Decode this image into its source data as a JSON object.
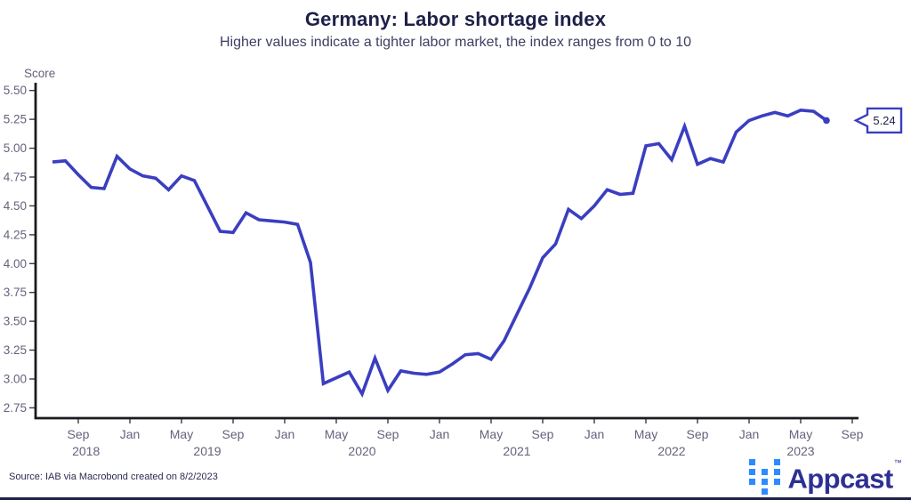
{
  "header": {
    "title": "Germany: Labor shortage index",
    "subtitle": "Higher values indicate a tighter labor market, the index ranges from 0 to 10"
  },
  "chart_data": {
    "type": "line",
    "title": "Germany: Labor shortage index",
    "subtitle": "Higher values indicate a tighter labor market, the index ranges from 0 to 10",
    "ylabel": "Score",
    "xlabel": "",
    "ylim": [
      2.75,
      5.5
    ],
    "ytick_step": 0.25,
    "ytick_labels": [
      "5.50",
      "5.25",
      "5.00",
      "4.75",
      "4.50",
      "4.25",
      "4.00",
      "3.75",
      "3.50",
      "3.25",
      "3.00",
      "2.75"
    ],
    "grid": false,
    "legend_position": "none",
    "frequency": "monthly",
    "x_start": "Jul 2018",
    "x_end": "Jul 2023",
    "series": [
      {
        "name": "Labor shortage index (Germany)",
        "values": [
          4.88,
          4.89,
          4.77,
          4.66,
          4.65,
          4.93,
          4.82,
          4.76,
          4.74,
          4.64,
          4.76,
          4.72,
          4.5,
          4.28,
          4.27,
          4.44,
          4.38,
          4.37,
          4.36,
          4.34,
          4.01,
          2.96,
          3.01,
          3.06,
          2.87,
          3.18,
          2.9,
          3.07,
          3.05,
          3.04,
          3.06,
          3.13,
          3.21,
          3.22,
          3.17,
          3.33,
          3.56,
          3.79,
          4.05,
          4.17,
          4.47,
          4.39,
          4.5,
          4.64,
          4.6,
          4.61,
          5.02,
          5.04,
          4.9,
          5.19,
          4.86,
          4.91,
          4.88,
          5.14,
          5.24,
          5.28,
          5.31,
          5.28,
          5.33,
          5.32,
          5.24
        ]
      }
    ],
    "xticks": [
      {
        "i": 2,
        "label": "Sep"
      },
      {
        "i": 6,
        "label": "Jan"
      },
      {
        "i": 10,
        "label": "May"
      },
      {
        "i": 14,
        "label": "Sep"
      },
      {
        "i": 18,
        "label": "Jan"
      },
      {
        "i": 22,
        "label": "May"
      },
      {
        "i": 26,
        "label": "Sep"
      },
      {
        "i": 30,
        "label": "Jan"
      },
      {
        "i": 34,
        "label": "May"
      },
      {
        "i": 38,
        "label": "Sep"
      },
      {
        "i": 42,
        "label": "Jan"
      },
      {
        "i": 46,
        "label": "May"
      },
      {
        "i": 50,
        "label": "Sep"
      },
      {
        "i": 54,
        "label": "Jan"
      },
      {
        "i": 58,
        "label": "May"
      },
      {
        "i": 62,
        "label": "Sep"
      }
    ],
    "year_labels": [
      {
        "i": 2.6,
        "label": "2018"
      },
      {
        "i": 12,
        "label": "2019"
      },
      {
        "i": 24,
        "label": "2020"
      },
      {
        "i": 36,
        "label": "2021"
      },
      {
        "i": 48,
        "label": "2022"
      },
      {
        "i": 58,
        "label": "2023"
      }
    ],
    "end_value_label": "5.24",
    "line_color": "#3a3ec0"
  },
  "footer": {
    "source": "Source: IAB via Macrobond created on 8/2/2023",
    "brand_name": "Appcast",
    "trademark": "™"
  },
  "colors": {
    "accent_line": "#3a3ec0",
    "title_text": "#1e2048",
    "tick_text": "#63637d",
    "brand_blue": "#2e8bff",
    "brand_navy": "#2e3092",
    "bottom_bar": "#1e2048"
  }
}
